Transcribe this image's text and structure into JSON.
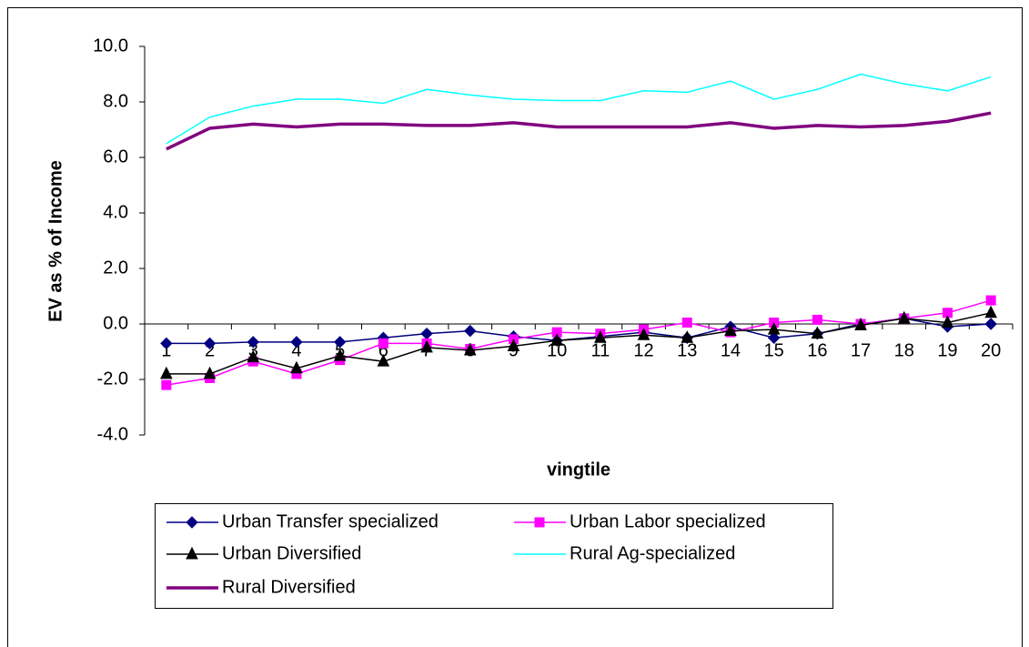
{
  "chart_data": {
    "type": "line",
    "ylabel": "EV as % of Income",
    "xlabel": "vingtile",
    "categories": [
      "1",
      "2",
      "3",
      "4",
      "5",
      "6",
      "7",
      "8",
      "9",
      "10",
      "11",
      "12",
      "13",
      "14",
      "15",
      "16",
      "17",
      "18",
      "19",
      "20"
    ],
    "ylim": [
      -4,
      10
    ],
    "yticks": [
      {
        "value": -4,
        "label": "-4.0"
      },
      {
        "value": -2,
        "label": "-2.0"
      },
      {
        "value": 0,
        "label": "0.0"
      },
      {
        "value": 2,
        "label": "2.0"
      },
      {
        "value": 4,
        "label": "4.0"
      },
      {
        "value": 6,
        "label": "6.0"
      },
      {
        "value": 8,
        "label": "8.0"
      },
      {
        "value": 10,
        "label": "10.0"
      }
    ],
    "series": [
      {
        "name": "Urban Transfer specialized",
        "color": "#000080",
        "marker": "diamond",
        "line_width": 1.5,
        "values": [
          -0.7,
          -0.7,
          -0.65,
          -0.65,
          -0.65,
          -0.5,
          -0.35,
          -0.25,
          -0.45,
          -0.6,
          -0.45,
          -0.3,
          -0.5,
          -0.1,
          -0.5,
          -0.35,
          0,
          0.2,
          -0.1,
          0
        ]
      },
      {
        "name": "Urban Labor specialized",
        "color": "#ff00ff",
        "marker": "square",
        "line_width": 1.5,
        "values": [
          -2.2,
          -1.95,
          -1.35,
          -1.8,
          -1.3,
          -0.7,
          -0.7,
          -0.9,
          -0.55,
          -0.3,
          -0.35,
          -0.2,
          0.05,
          -0.3,
          0.05,
          0.15,
          0,
          0.2,
          0.4,
          0.85
        ]
      },
      {
        "name": "Urban Diversified",
        "color": "#000000",
        "marker": "triangle",
        "line_width": 1.5,
        "values": [
          -1.8,
          -1.8,
          -1.2,
          -1.6,
          -1.15,
          -1.35,
          -0.85,
          -0.95,
          -0.8,
          -0.6,
          -0.5,
          -0.4,
          -0.5,
          -0.25,
          -0.2,
          -0.35,
          -0.05,
          0.2,
          0.05,
          0.4
        ]
      },
      {
        "name": "Rural Ag-specialized",
        "color": "#00ffff",
        "marker": "none",
        "line_width": 1.5,
        "values": [
          6.5,
          7.45,
          7.85,
          8.1,
          8.1,
          7.95,
          8.45,
          8.25,
          8.1,
          8.05,
          8.05,
          8.4,
          8.35,
          8.75,
          8.1,
          8.45,
          9.0,
          8.65,
          8.4,
          8.9
        ]
      },
      {
        "name": "Rural Diversified",
        "color": "#800080",
        "marker": "none",
        "line_width": 3.5,
        "values": [
          6.3,
          7.05,
          7.2,
          7.1,
          7.2,
          7.2,
          7.15,
          7.15,
          7.25,
          7.1,
          7.1,
          7.1,
          7.1,
          7.25,
          7.05,
          7.15,
          7.1,
          7.15,
          7.3,
          7.6
        ]
      }
    ]
  }
}
